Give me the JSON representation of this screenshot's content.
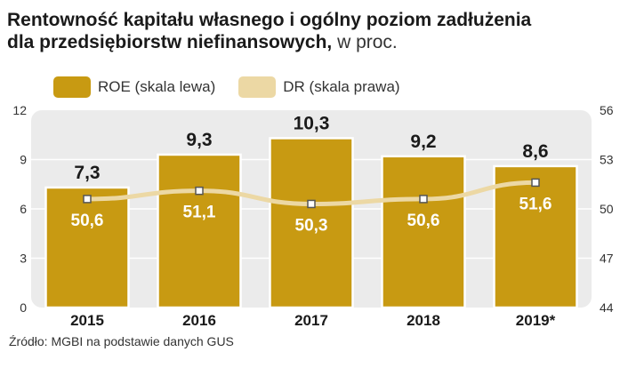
{
  "title": {
    "line1": "Rentowność kapitału własnego i ogólny poziom zadłużenia",
    "line2_bold": "dla przedsiębiorstw niefinansowych,",
    "line2_unit": " w proc."
  },
  "legend": [
    {
      "label": "ROE (skala lewa)",
      "color": "#c89a12"
    },
    {
      "label": "DR (skala prawa)",
      "color": "#ecd8a4"
    }
  ],
  "source": "Źródło: MGBI na podstawie danych GUS",
  "chart_data": {
    "type": "bar",
    "categories": [
      "2015",
      "2016",
      "2017",
      "2018",
      "2019*"
    ],
    "series": [
      {
        "name": "ROE (skala lewa)",
        "axis": "left",
        "kind": "bar",
        "values": [
          7.3,
          9.3,
          10.3,
          9.2,
          8.6
        ],
        "labels": [
          "7,3",
          "9,3",
          "10,3",
          "9,2",
          "8,6"
        ]
      },
      {
        "name": "DR (skala prawa)",
        "axis": "right",
        "kind": "line",
        "values": [
          50.6,
          51.1,
          50.3,
          50.6,
          51.6
        ],
        "labels": [
          "50,6",
          "51,1",
          "50,3",
          "50,6",
          "51,6"
        ]
      }
    ],
    "left_axis": {
      "min": 0,
      "max": 12,
      "ticks": [
        "0",
        "3",
        "6",
        "9",
        "12"
      ]
    },
    "right_axis": {
      "min": 44,
      "max": 56,
      "ticks": [
        "44",
        "47",
        "50",
        "53",
        "56"
      ]
    },
    "grid": true,
    "bar_color": "#c89a12",
    "line_color": "#ecd8a4",
    "plot_bg": "#ebebeb"
  }
}
